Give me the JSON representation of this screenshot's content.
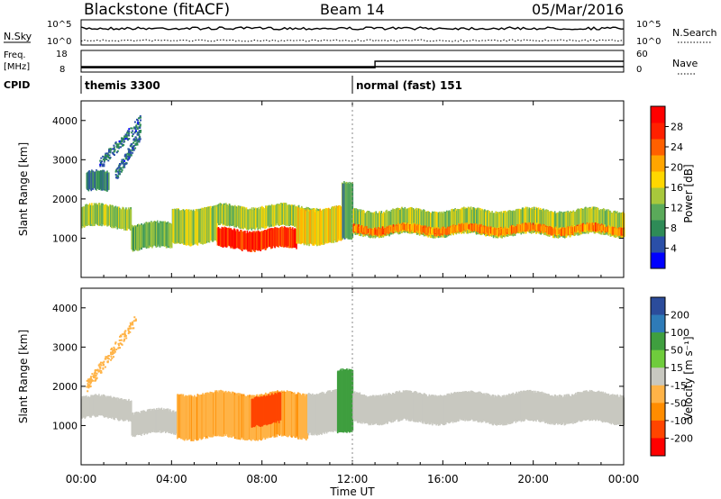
{
  "header": {
    "radar": "Blackstone (fitACF)",
    "beam": "Beam 14",
    "date": "05/Mar/2016"
  },
  "status_panels": {
    "nsky_label": "N.Sky",
    "nsearch_label": "N.Search",
    "nsky_ticks": [
      "10^5",
      "10^0"
    ],
    "freq_label": "Freq.",
    "freq_unit": "[MHz]",
    "freq_ticks": [
      "18",
      "8"
    ],
    "nave_label": "Nave",
    "nave_ticks": [
      "60",
      "0"
    ],
    "cpid_label": "CPID",
    "cpid_segments": [
      {
        "name": "themis 3300",
        "start_hour": 0,
        "end_hour": 12
      },
      {
        "name": "normal (fast) 151",
        "start_hour": 12,
        "end_hour": 24
      }
    ],
    "freq_series": [
      {
        "from_hour": 0,
        "to_hour": 13,
        "mhz": 10.5
      },
      {
        "from_hour": 13,
        "to_hour": 24,
        "mhz": 10.5
      }
    ],
    "nave_series": [
      {
        "from_hour": 0,
        "to_hour": 13,
        "value": 12
      },
      {
        "from_hour": 13,
        "to_hour": 24,
        "value": 30
      }
    ]
  },
  "chart_data": [
    {
      "type": "heatmap",
      "title": "Power",
      "ylabel": "Slant Range [km]",
      "ylim": [
        0,
        4500
      ],
      "yticks": [
        1000,
        2000,
        3000,
        4000
      ],
      "colorbar_label": "Power [dB]",
      "colorbar_ticks": [
        "28",
        "24",
        "20",
        "16",
        "12",
        "8",
        "4"
      ],
      "colorbar_range": [
        0,
        32
      ],
      "colors": [
        "#0000ff",
        "#2a4fa8",
        "#2e8b57",
        "#5aaa5a",
        "#a8c83c",
        "#ffd700",
        "#ffa500",
        "#ff6000",
        "#ff2000",
        "#ff0000"
      ],
      "bands": [
        {
          "from_hour": 0.2,
          "to_hour": 1.2,
          "lo_km": 2150,
          "hi_km": 2700,
          "power": 8
        },
        {
          "from_hour": 0.0,
          "to_hour": 2.2,
          "lo_km": 1250,
          "hi_km": 1850,
          "power": 14
        },
        {
          "from_hour": 2.2,
          "to_hour": 4.0,
          "lo_km": 700,
          "hi_km": 1400,
          "power": 12
        },
        {
          "from_hour": 4.0,
          "to_hour": 6.0,
          "lo_km": 850,
          "hi_km": 1800,
          "power": 15
        },
        {
          "from_hour": 6.0,
          "to_hour": 9.5,
          "lo_km": 700,
          "hi_km": 1250,
          "power": 27
        },
        {
          "from_hour": 6.0,
          "to_hour": 10.5,
          "lo_km": 1250,
          "hi_km": 1850,
          "power": 14
        },
        {
          "from_hour": 9.5,
          "to_hour": 11.5,
          "lo_km": 850,
          "hi_km": 1800,
          "power": 18
        },
        {
          "from_hour": 11.5,
          "to_hour": 12.0,
          "lo_km": 900,
          "hi_km": 2400,
          "power": 10
        },
        {
          "from_hour": 12.0,
          "to_hour": 24.0,
          "lo_km": 1050,
          "hi_km": 1750,
          "power": 14
        },
        {
          "from_hour": 12.0,
          "to_hour": 24.0,
          "lo_km": 1100,
          "hi_km": 1350,
          "power": 22
        }
      ],
      "streaks": [
        {
          "from_hour": 0.8,
          "to_hour": 2.6,
          "from_km": 2900,
          "to_km": 4000,
          "power": 6
        },
        {
          "from_hour": 1.5,
          "to_hour": 2.6,
          "from_km": 2600,
          "to_km": 3700,
          "power": 6
        }
      ]
    },
    {
      "type": "heatmap",
      "title": "Velocity",
      "ylabel": "Slant Range [km]",
      "ylim": [
        0,
        4500
      ],
      "yticks": [
        1000,
        2000,
        3000,
        4000
      ],
      "colorbar_label": "Velocity [m s⁻¹]",
      "colorbar_ticks": [
        "200",
        "100",
        "50",
        "15",
        "-15",
        "-50",
        "-100",
        "-200"
      ],
      "colorbar_colors": [
        "#2b4c9b",
        "#2e7bb8",
        "#3f9f3f",
        "#6fcc3c",
        "#c8c8c0",
        "#ffb347",
        "#ff8c00",
        "#ff4500",
        "#ff0000"
      ],
      "bands": [
        {
          "from_hour": 0.0,
          "to_hour": 2.2,
          "lo_km": 1150,
          "hi_km": 1750,
          "vel": 0
        },
        {
          "from_hour": 2.2,
          "to_hour": 4.2,
          "lo_km": 750,
          "hi_km": 1400,
          "vel": 0
        },
        {
          "from_hour": 4.2,
          "to_hour": 10.0,
          "lo_km": 650,
          "hi_km": 1850,
          "vel": -40
        },
        {
          "from_hour": 7.5,
          "to_hour": 8.8,
          "lo_km": 1000,
          "hi_km": 1800,
          "vel": -120
        },
        {
          "from_hour": 10.0,
          "to_hour": 11.3,
          "lo_km": 800,
          "hi_km": 1900,
          "vel": 0
        },
        {
          "from_hour": 11.3,
          "to_hour": 12.0,
          "lo_km": 750,
          "hi_km": 2400,
          "vel": 60
        },
        {
          "from_hour": 12.0,
          "to_hour": 24.0,
          "lo_km": 1050,
          "hi_km": 1850,
          "vel": 0
        }
      ],
      "streaks": [
        {
          "from_hour": 0.2,
          "to_hour": 2.4,
          "from_km": 2000,
          "to_km": 3700,
          "vel": -40
        }
      ]
    }
  ],
  "xaxis": {
    "label": "Time UT",
    "ticks": [
      "00:00",
      "04:00",
      "08:00",
      "12:00",
      "16:00",
      "20:00",
      "00:00"
    ],
    "range_hours": [
      0,
      24
    ]
  }
}
